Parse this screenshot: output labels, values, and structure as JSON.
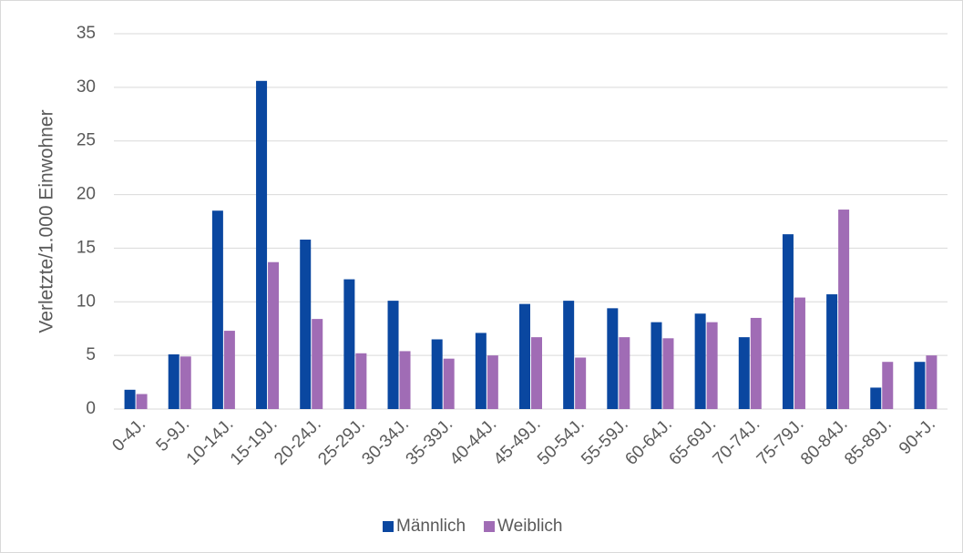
{
  "chart_data": {
    "type": "bar",
    "y_label": "Verletzte/1.000 Einwohner",
    "categories": [
      "0-4J.",
      "5-9J.",
      "10-14J.",
      "15-19J.",
      "20-24J.",
      "25-29J.",
      "30-34J.",
      "35-39J.",
      "40-44J.",
      "45-49J.",
      "50-54J.",
      "55-59J.",
      "60-64J.",
      "65-69J.",
      "70-74J.",
      "75-79J.",
      "80-84J.",
      "85-89J.",
      "90+J."
    ],
    "series": [
      {
        "name": "Männlich",
        "color": "#0a47a0",
        "values": [
          1.8,
          5.1,
          18.5,
          30.6,
          15.8,
          12.1,
          10.1,
          6.5,
          7.1,
          9.8,
          10.1,
          9.4,
          8.1,
          8.9,
          6.7,
          16.3,
          10.7,
          2.0,
          4.4
        ]
      },
      {
        "name": "Weiblich",
        "color": "#a06cb5",
        "values": [
          1.4,
          4.9,
          7.3,
          13.7,
          8.4,
          5.2,
          5.4,
          4.7,
          5.0,
          6.7,
          4.8,
          6.7,
          6.6,
          8.1,
          8.5,
          10.4,
          18.6,
          4.4,
          5.0
        ]
      }
    ],
    "ylim": [
      0,
      35
    ],
    "yticks": [
      0,
      5,
      10,
      15,
      20,
      25,
      30,
      35
    ],
    "grid": true,
    "legend": "bottom"
  }
}
